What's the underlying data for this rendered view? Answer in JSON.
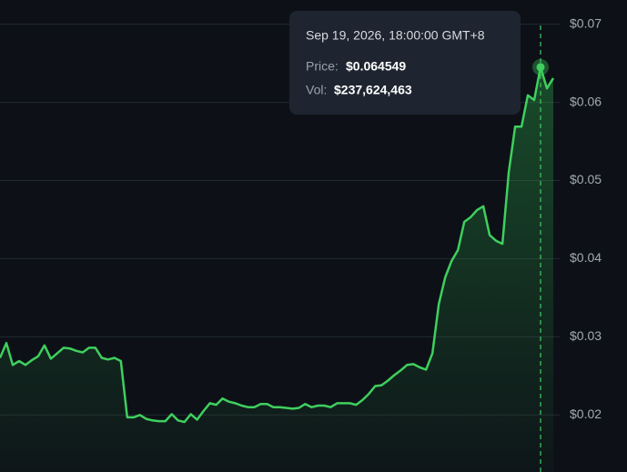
{
  "chart_data": {
    "type": "line",
    "values": [
      0.0273,
      0.0292,
      0.0264,
      0.0269,
      0.0264,
      0.027,
      0.0275,
      0.0289,
      0.0272,
      0.0279,
      0.0286,
      0.0285,
      0.0282,
      0.028,
      0.0286,
      0.0286,
      0.0273,
      0.0271,
      0.0273,
      0.0269,
      0.0197,
      0.0197,
      0.02,
      0.0195,
      0.0193,
      0.0192,
      0.0192,
      0.0201,
      0.0193,
      0.0191,
      0.0201,
      0.0194,
      0.0205,
      0.0215,
      0.0213,
      0.0221,
      0.0217,
      0.0215,
      0.0212,
      0.021,
      0.021,
      0.0214,
      0.0214,
      0.021,
      0.021,
      0.0209,
      0.0208,
      0.0209,
      0.0214,
      0.021,
      0.0212,
      0.0212,
      0.021,
      0.0215,
      0.0215,
      0.0215,
      0.0213,
      0.0219,
      0.0227,
      0.0237,
      0.0238,
      0.0244,
      0.0251,
      0.0257,
      0.0264,
      0.0265,
      0.0261,
      0.0258,
      0.0279,
      0.0342,
      0.0376,
      0.0397,
      0.0411,
      0.0447,
      0.0453,
      0.0462,
      0.0467,
      0.043,
      0.0423,
      0.0419,
      0.0511,
      0.0569,
      0.0569,
      0.0609,
      0.0603,
      0.0645,
      0.0618,
      0.0631
    ],
    "color": "#3fcf5e",
    "ylim": [
      0.0127,
      0.0731
    ],
    "yticks": [
      {
        "value": 0.02,
        "label": "$0.02"
      },
      {
        "value": 0.03,
        "label": "$0.03"
      },
      {
        "value": 0.04,
        "label": "$0.04"
      },
      {
        "value": 0.05,
        "label": "$0.05"
      },
      {
        "value": 0.06,
        "label": "$0.06"
      },
      {
        "value": 0.07,
        "label": "$0.07"
      }
    ],
    "grid": true,
    "tooltip": {
      "date": "Sep 19, 2026, 18:00:00 GMT+8",
      "price_label": "Price:",
      "price": "$0.064549",
      "vol_label": "Vol:",
      "vol": "$237,624,463"
    }
  }
}
